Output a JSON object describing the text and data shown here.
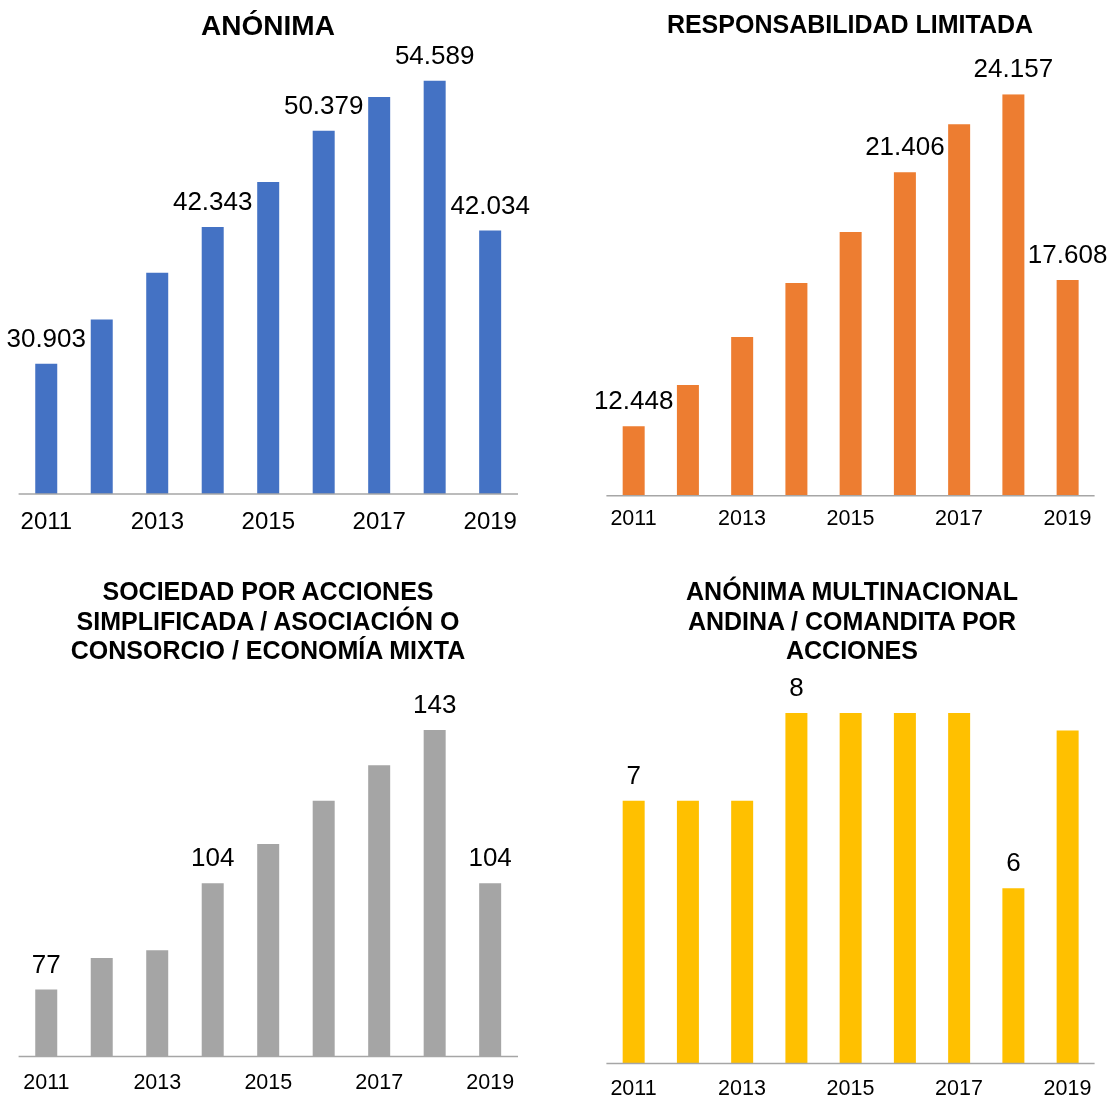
{
  "chart_data": [
    {
      "type": "bar",
      "title": "ANÓNIMA",
      "categories": [
        "2011",
        null,
        "2013",
        null,
        "2015",
        null,
        "2017",
        null,
        "2019"
      ],
      "values": [
        30903,
        34600,
        38500,
        42343,
        46100,
        50379,
        53200,
        54589,
        42034
      ],
      "value_labels": [
        "30.903",
        null,
        null,
        "42.343",
        null,
        "50.379",
        null,
        "54.589",
        "42.034"
      ],
      "color": "#4472c4",
      "ylim": [
        20000,
        54589
      ],
      "tick_labels": "x"
    },
    {
      "type": "bar",
      "title": "RESPONSABILIDAD LIMITADA",
      "categories": [
        "2011",
        null,
        "2013",
        null,
        "2015",
        null,
        "2017",
        null,
        "2019"
      ],
      "values": [
        12448,
        13900,
        15600,
        17500,
        19300,
        21406,
        23100,
        24157,
        17608
      ],
      "value_labels": [
        "12.448",
        null,
        null,
        null,
        null,
        "21.406",
        null,
        "24.157",
        "17.608"
      ],
      "color": "#ed7d31",
      "ylim": [
        10000,
        24157
      ],
      "tick_labels": "x"
    },
    {
      "type": "bar",
      "title": "SOCIEDAD POR ACCIONES SIMPLIFICADA / ASOCIACIÓN O CONSORCIO / ECONOMÍA MIXTA",
      "categories": [
        "2011",
        null,
        "2013",
        null,
        "2015",
        null,
        "2017",
        null,
        "2019"
      ],
      "values": [
        77,
        85,
        87,
        104,
        114,
        125,
        134,
        143,
        104
      ],
      "value_labels": [
        "77",
        null,
        null,
        "104",
        null,
        null,
        null,
        "143",
        "104"
      ],
      "color": "#a5a5a5",
      "ylim": [
        60,
        143
      ],
      "tick_labels": "x"
    },
    {
      "type": "bar",
      "title": "ANÓNIMA MULTINACIONAL ANDINA / COMANDITA POR ACCIONES",
      "categories": [
        "2011",
        null,
        "2013",
        null,
        "2015",
        null,
        "2017",
        null,
        "2019"
      ],
      "values": [
        7,
        7,
        7,
        8,
        8,
        8,
        8,
        6,
        7.8
      ],
      "value_labels": [
        "7",
        null,
        null,
        "8",
        null,
        null,
        null,
        "6",
        null
      ],
      "color": "#ffc000",
      "ylim": [
        4,
        8
      ],
      "tick_labels": "x"
    }
  ]
}
